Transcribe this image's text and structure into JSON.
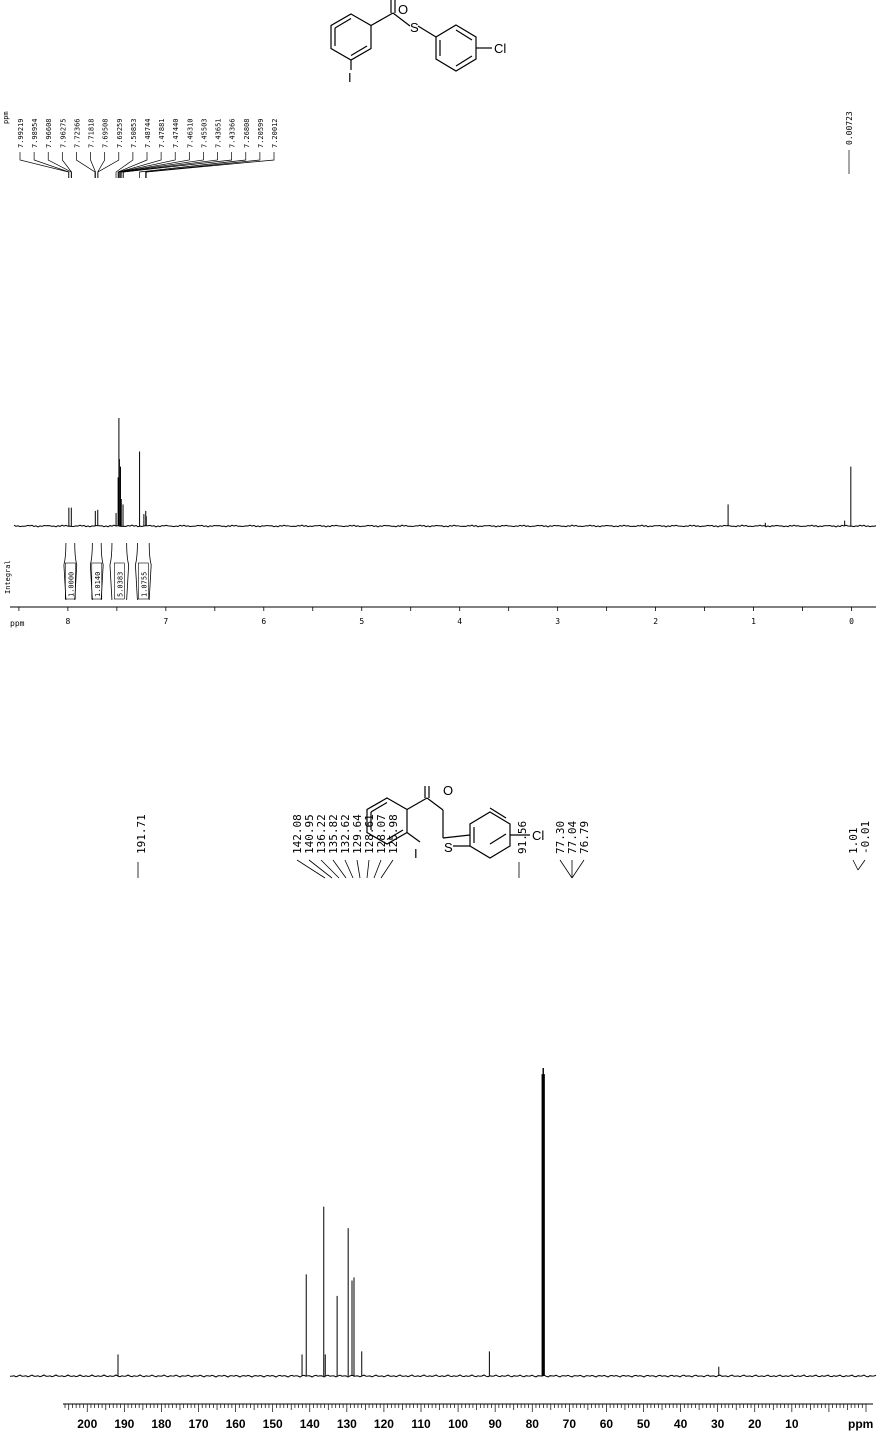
{
  "structures": {
    "atom_O": "O",
    "atom_S": "S",
    "atom_Cl": "Cl",
    "atom_I": "I"
  },
  "chart_data": [
    {
      "type": "line",
      "nucleus": "1H",
      "xlabel": "ppm",
      "xlim": [
        8.55,
        -0.25
      ],
      "x_ticks": [
        "8",
        "7",
        "6",
        "5",
        "4",
        "3",
        "2",
        "1",
        "0"
      ],
      "peak_list_header": "ppm",
      "peak_labels": [
        "7.99219",
        "7.98954",
        "7.96608",
        "7.96275",
        "7.72366",
        "7.71818",
        "7.69508",
        "7.69259",
        "7.50853",
        "7.48744",
        "7.47881",
        "7.47440",
        "7.46310",
        "7.45503",
        "7.43651",
        "7.43366",
        "7.26808",
        "7.20599",
        "7.20012"
      ],
      "right_label": "0.00723",
      "peaks": [
        {
          "ppm": 7.99,
          "height": 0.17
        },
        {
          "ppm": 7.965,
          "height": 0.17
        },
        {
          "ppm": 7.72,
          "height": 0.14
        },
        {
          "ppm": 7.695,
          "height": 0.15
        },
        {
          "ppm": 7.508,
          "height": 0.12
        },
        {
          "ppm": 7.487,
          "height": 0.45
        },
        {
          "ppm": 7.479,
          "height": 1.0
        },
        {
          "ppm": 7.474,
          "height": 0.62
        },
        {
          "ppm": 7.463,
          "height": 0.55
        },
        {
          "ppm": 7.455,
          "height": 0.25
        },
        {
          "ppm": 7.437,
          "height": 0.2
        },
        {
          "ppm": 7.268,
          "height": 0.69
        },
        {
          "ppm": 7.224,
          "height": 0.11
        },
        {
          "ppm": 7.205,
          "height": 0.14
        },
        {
          "ppm": 7.2,
          "height": 0.09
        },
        {
          "ppm": 1.26,
          "height": 0.2
        },
        {
          "ppm": 0.88,
          "height": 0.03
        },
        {
          "ppm": 0.07,
          "height": 0.05
        },
        {
          "ppm": 0.007,
          "height": 0.55
        }
      ],
      "integral_label": "Integral",
      "integrals": [
        {
          "value": "1.0000",
          "from": 8.02,
          "to": 7.93
        },
        {
          "value": "1.0140",
          "from": 7.75,
          "to": 7.66
        },
        {
          "value": "5.0383",
          "from": 7.55,
          "to": 7.4
        },
        {
          "value": "1.0755",
          "from": 7.29,
          "to": 7.17
        }
      ]
    },
    {
      "type": "line",
      "nucleus": "13C",
      "xlabel": "ppm",
      "xlim": [
        206,
        -10
      ],
      "x_ticks": [
        "200",
        "190",
        "180",
        "170",
        "160",
        "150",
        "140",
        "130",
        "120",
        "110",
        "100",
        "90",
        "80",
        "70",
        "60",
        "50",
        "40",
        "30",
        "20",
        "10"
      ],
      "peak_labels": [
        "191.71",
        "142.08",
        "140.95",
        "136.22",
        "135.82",
        "132.62",
        "129.64",
        "128.61",
        "128.07",
        "125.98",
        "91.56",
        "77.30",
        "77.04",
        "76.79",
        "1.01",
        "-0.01"
      ],
      "peaks": [
        {
          "ppm": 191.71,
          "height": 0.07
        },
        {
          "ppm": 142.08,
          "height": 0.07
        },
        {
          "ppm": 140.95,
          "height": 0.33
        },
        {
          "ppm": 136.22,
          "height": 0.55
        },
        {
          "ppm": 135.82,
          "height": 0.07
        },
        {
          "ppm": 132.62,
          "height": 0.26
        },
        {
          "ppm": 129.64,
          "height": 0.48
        },
        {
          "ppm": 128.61,
          "height": 0.31
        },
        {
          "ppm": 128.07,
          "height": 0.32
        },
        {
          "ppm": 125.98,
          "height": 0.08
        },
        {
          "ppm": 91.56,
          "height": 0.08
        },
        {
          "ppm": 77.3,
          "height": 0.98
        },
        {
          "ppm": 77.04,
          "height": 1.0
        },
        {
          "ppm": 76.79,
          "height": 0.98
        },
        {
          "ppm": 29.7,
          "height": 0.03
        }
      ]
    }
  ]
}
